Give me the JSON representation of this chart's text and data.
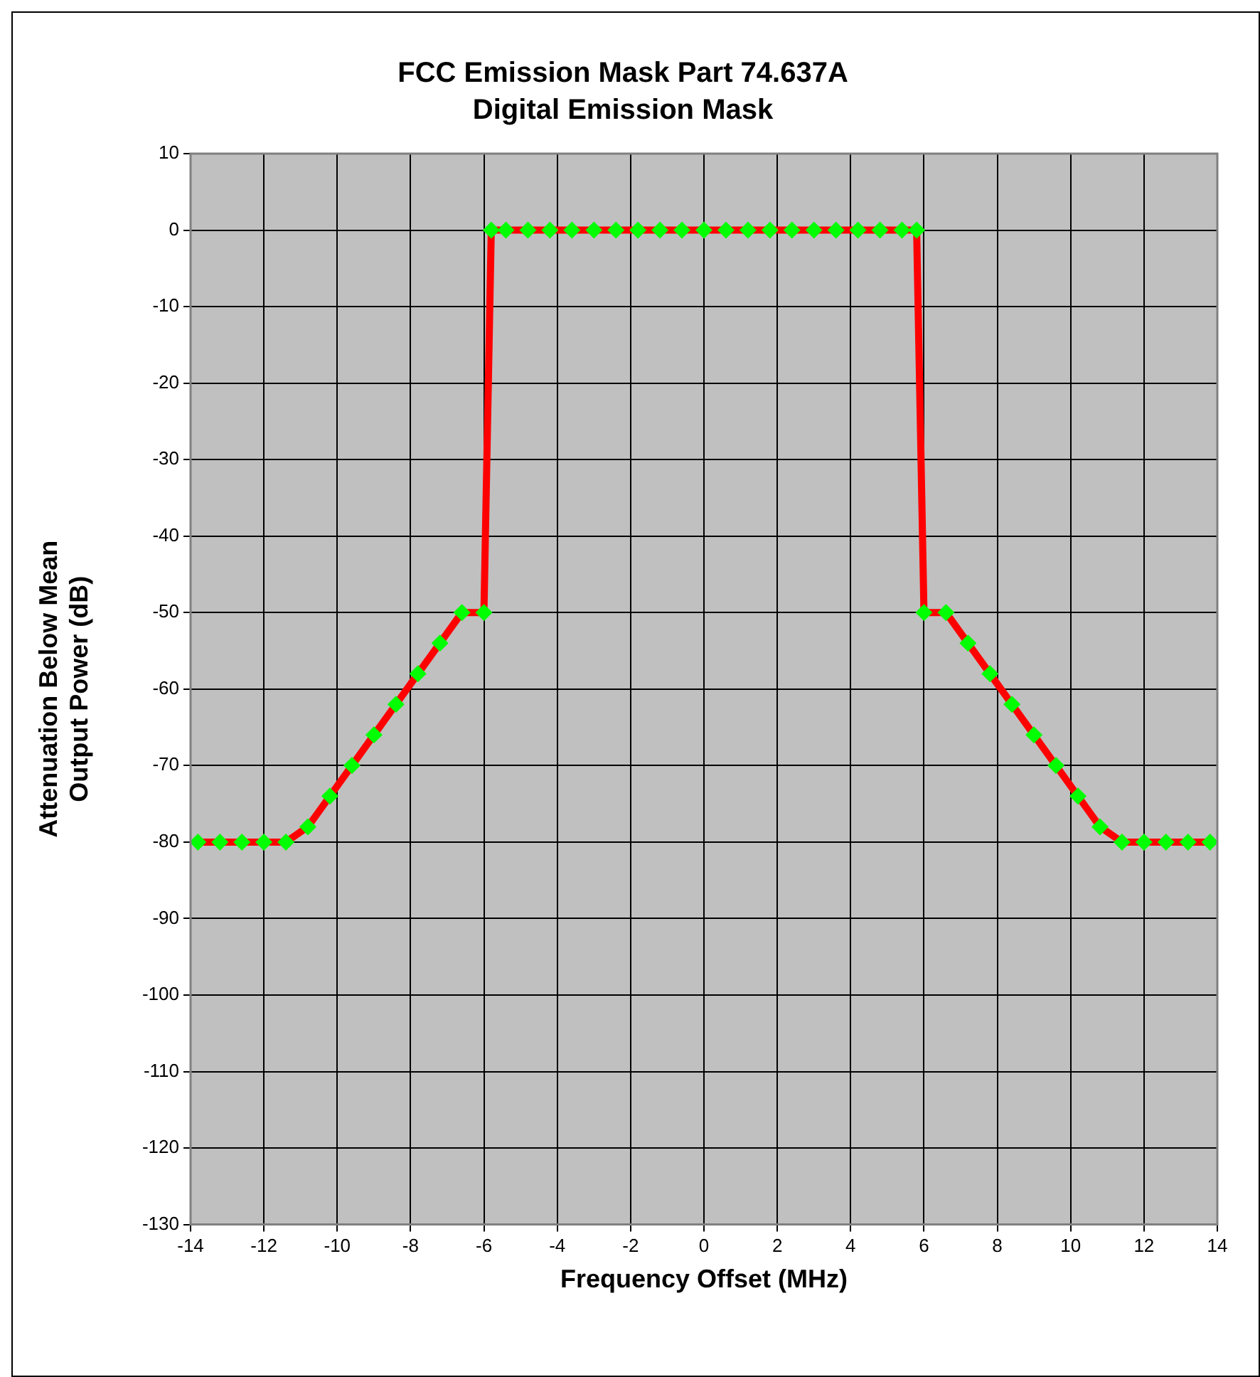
{
  "chart_data": {
    "type": "line",
    "title": "FCC Emission Mask Part 74.637A",
    "subtitle": "Digital Emission Mask",
    "xlabel": "Frequency Offset (MHz)",
    "ylabel": "Attenuation Below Mean\nOutput Power (dB)",
    "xlim": [
      -14,
      14
    ],
    "xticks": [
      -14,
      -12,
      -10,
      -8,
      -6,
      -4,
      -2,
      0,
      2,
      4,
      6,
      8,
      10,
      12,
      14
    ],
    "ylim": [
      -130,
      10
    ],
    "yticks": [
      -130,
      -120,
      -110,
      -100,
      -90,
      -80,
      -70,
      -60,
      -50,
      -40,
      -30,
      -20,
      -10,
      0,
      10
    ],
    "grid": true,
    "legend": false,
    "marker": "diamond",
    "line_style": "solid",
    "series": [
      {
        "color": "#ff0000",
        "colors": [
          "#00ff00",
          "#00ff00",
          "#00ff00",
          "#00ff00",
          "#00ff00",
          "#00ff00",
          "#00ff00",
          "#00ff00",
          "#00ff00",
          "#00ff00",
          "#00ff00",
          "#00ff00",
          "#00ff00",
          "#00ff00",
          "#00ff00",
          "#00ff00",
          "#00ff00",
          "#00ff00",
          "#00ff00",
          "#00ff00",
          "#00ff00",
          "#00ff00",
          "#00ff00",
          "#00ff00",
          "#00ff00",
          "#00ff00",
          "#00ff00",
          "#00ff00",
          "#00ff00",
          "#00ff00",
          "#00ff00",
          "#00ff00",
          "#00ff00",
          "#00ff00",
          "#00ff00",
          "#00ff00",
          "#00ff00",
          "#00ff00",
          "#00ff00",
          "#00ff00",
          "#00ff00",
          "#00ff00",
          "#00ff00",
          "#00ff00",
          "#00ff00",
          "#00ff00",
          "#00ff00",
          "#00ff00",
          "#00ff00"
        ],
        "x": [
          -13.8,
          -13.2,
          -12.6,
          -12.0,
          -11.4,
          -10.8,
          -10.2,
          -9.6,
          -9.0,
          -8.4,
          -7.8,
          -7.2,
          -6.6,
          -6.0,
          -5.8,
          -5.4,
          -4.8,
          -4.2,
          -3.6,
          -3.0,
          -2.4,
          -1.8,
          -1.2,
          -0.6,
          0,
          0.6,
          1.2,
          1.8,
          2.4,
          3.0,
          3.6,
          4.2,
          4.8,
          5.4,
          5.8,
          6.0,
          6.6,
          7.2,
          7.8,
          8.4,
          9.0,
          9.6,
          10.2,
          10.8,
          11.4,
          12.0,
          12.6,
          13.2,
          13.8
        ],
        "values": [
          -80,
          -80,
          -80,
          -80,
          -80,
          -78,
          -74,
          -70,
          -66,
          -62,
          -58,
          -54,
          -50,
          -50,
          0,
          0,
          0,
          0,
          0,
          0,
          0,
          0,
          0,
          0,
          0,
          0,
          0,
          0,
          0,
          0,
          0,
          0,
          0,
          0,
          0,
          -50,
          -50,
          -54,
          -58,
          -62,
          -66,
          -70,
          -74,
          -78,
          -80,
          -80,
          -80,
          -80,
          -80
        ]
      }
    ]
  }
}
